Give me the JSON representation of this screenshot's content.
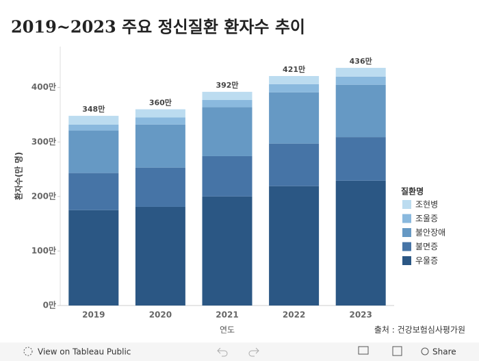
{
  "chart_data": {
    "type": "bar",
    "stacked": true,
    "title": "2019~2023 주요 정신질환 환자수 추이",
    "x_label": "연도",
    "y_label": "환자수(만 명)",
    "legend_title": "질환명",
    "legend": "right",
    "source": "출처 : 건강보험심사평가원",
    "categories": [
      "2019",
      "2020",
      "2021",
      "2022",
      "2023"
    ],
    "series": [
      {
        "name": "우울증",
        "color": "#2b5784",
        "values": [
          175,
          181,
          200,
          219,
          229
        ]
      },
      {
        "name": "불면증",
        "color": "#4674a6",
        "values": [
          68,
          72,
          74,
          78,
          80
        ]
      },
      {
        "name": "불안장애",
        "color": "#6699c4",
        "values": [
          78,
          79,
          90,
          94,
          96
        ]
      },
      {
        "name": "조울증",
        "color": "#8ab9de",
        "values": [
          11,
          13,
          13,
          15,
          15
        ]
      },
      {
        "name": "조현병",
        "color": "#bcdcf0",
        "values": [
          16,
          15,
          15,
          15,
          16
        ]
      }
    ],
    "totals": {
      "values": [
        348,
        360,
        392,
        421,
        436
      ],
      "value_labels": [
        "348만",
        "360만",
        "392만",
        "421만",
        "436만"
      ]
    },
    "ylim": [
      0,
      470
    ],
    "yticks": [
      {
        "value": 0,
        "label": "0만"
      },
      {
        "value": 100,
        "label": "100만"
      },
      {
        "value": 200,
        "label": "200만"
      },
      {
        "value": 300,
        "label": "300만"
      },
      {
        "value": 400,
        "label": "400만"
      }
    ]
  },
  "toolbar": {
    "view": "View on Tableau Public",
    "share": "Share"
  }
}
